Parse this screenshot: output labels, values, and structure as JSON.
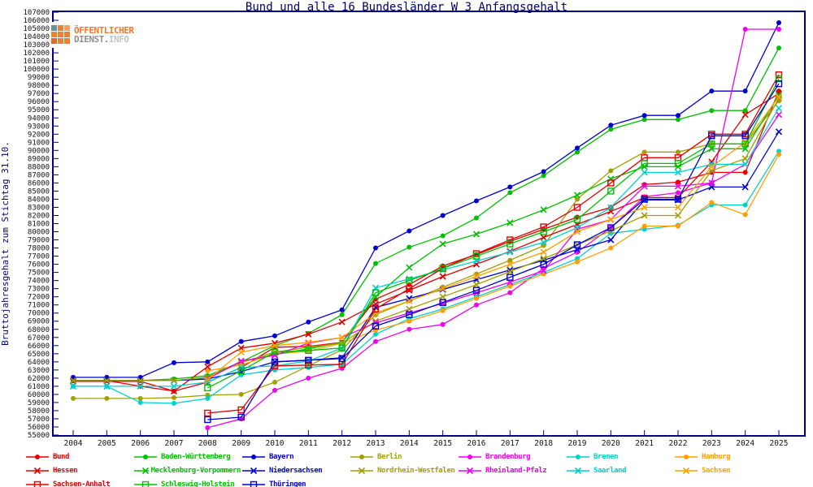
{
  "title": "Bund und alle 16 Bundesländer W 3 Anfangsgehalt",
  "logo": {
    "line1": "ÖFFENTLICHER",
    "line2_dark": "DIENST.",
    "line2_light": "INFO"
  },
  "chart_data": {
    "type": "line",
    "title": "Bund und alle 16 Bundesländer W 3 Anfangsgehalt",
    "ylabel": "Bruttojahresgehalt zum Stichtag 31.10.",
    "xlabel": "",
    "x": [
      2004,
      2005,
      2006,
      2007,
      2008,
      2009,
      2010,
      2011,
      2012,
      2013,
      2014,
      2015,
      2016,
      2017,
      2018,
      2019,
      2020,
      2021,
      2022,
      2023,
      2024,
      2025
    ],
    "ylim": [
      55000,
      107000
    ],
    "ytick_step": 1000,
    "grid": false,
    "legend_position": "bottom",
    "frame_color": "#000080",
    "series": [
      {
        "name": "Bund",
        "color": "#e00000",
        "marker": "dot",
        "values": [
          61700,
          61700,
          61000,
          60400,
          61500,
          63300,
          65800,
          65900,
          66400,
          71700,
          73500,
          75800,
          77200,
          78800,
          80300,
          81800,
          83000,
          85800,
          86100,
          87300,
          87300,
          97300
        ]
      },
      {
        "name": "Baden-Württemberg",
        "color": "#00c000",
        "marker": "dot",
        "values": [
          61700,
          61700,
          61700,
          61900,
          62300,
          64000,
          66000,
          67500,
          69800,
          76100,
          78100,
          79500,
          81700,
          84800,
          86900,
          89800,
          92600,
          93800,
          93800,
          94900,
          94900,
          102600
        ]
      },
      {
        "name": "Bayern",
        "color": "#0000d0",
        "marker": "dot",
        "values": [
          62100,
          62100,
          62100,
          63900,
          64000,
          66500,
          67200,
          68900,
          70400,
          78000,
          80100,
          82000,
          83800,
          85500,
          87400,
          90300,
          93100,
          94300,
          94300,
          97300,
          97300,
          105700
        ]
      },
      {
        "name": "Berlin",
        "color": "#a0a000",
        "marker": "dot",
        "values": [
          59500,
          59500,
          59500,
          59600,
          59900,
          60000,
          61500,
          63500,
          65500,
          69800,
          71500,
          73200,
          74800,
          76500,
          78300,
          84000,
          87500,
          89800,
          89800,
          90800,
          90800,
          96100
        ]
      },
      {
        "name": "Brandenburg",
        "color": "#f000f0",
        "marker": "dot",
        "values": [
          null,
          null,
          null,
          null,
          55900,
          57000,
          60500,
          62000,
          63200,
          66500,
          68000,
          68600,
          71000,
          72500,
          75500,
          77500,
          80500,
          84300,
          84800,
          86000,
          104900,
          104900
        ]
      },
      {
        "name": "Bremen",
        "color": "#00d0d0",
        "marker": "dot",
        "values": [
          61000,
          61000,
          59000,
          58900,
          59500,
          62400,
          63000,
          63300,
          63700,
          67400,
          69300,
          70500,
          72000,
          73500,
          75000,
          76700,
          79800,
          80300,
          80800,
          83300,
          83300,
          89900
        ]
      },
      {
        "name": "Hamburg",
        "color": "#ffa000",
        "marker": "dot",
        "values": [
          null,
          null,
          null,
          null,
          62900,
          63600,
          65000,
          65300,
          66300,
          67900,
          69000,
          70300,
          71800,
          73300,
          74800,
          76300,
          78000,
          80700,
          80700,
          83600,
          82100,
          89500
        ]
      },
      {
        "name": "Hessen",
        "color": "#e00000",
        "marker": "x",
        "values": [
          61600,
          61600,
          61600,
          60400,
          63400,
          65700,
          66300,
          67400,
          68900,
          71100,
          72800,
          74500,
          76000,
          77600,
          79300,
          80900,
          82500,
          84200,
          84200,
          88600,
          94400,
          97000
        ]
      },
      {
        "name": "Mecklenburg-Vorpommern",
        "color": "#00c000",
        "marker": "x",
        "values": [
          61700,
          61700,
          61700,
          61700,
          62100,
          64000,
          64900,
          65600,
          66400,
          72000,
          75600,
          78500,
          79700,
          81100,
          82700,
          84500,
          86500,
          88000,
          88000,
          90200,
          90200,
          96800
        ]
      },
      {
        "name": "Niedersachsen",
        "color": "#0000d0",
        "marker": "x",
        "values": [
          61700,
          61700,
          61700,
          61700,
          61900,
          62800,
          64000,
          64200,
          64500,
          70700,
          71800,
          72900,
          74100,
          75300,
          76500,
          77800,
          79000,
          83900,
          83900,
          85500,
          85500,
          92300
        ]
      },
      {
        "name": "Nordrhein-Westfalen",
        "color": "#a0a000",
        "marker": "x",
        "values": [
          61700,
          61700,
          61700,
          61700,
          62100,
          63900,
          65200,
          65800,
          66300,
          69000,
          70500,
          72000,
          73500,
          75100,
          76700,
          78400,
          80100,
          82000,
          82000,
          87500,
          89000,
          96400
        ]
      },
      {
        "name": "Rheinland-Pfalz",
        "color": "#f000f0",
        "marker": "x",
        "values": [
          null,
          null,
          null,
          null,
          61900,
          64100,
          64800,
          66300,
          67000,
          68800,
          70000,
          71200,
          72500,
          73800,
          75200,
          80300,
          81500,
          85600,
          85600,
          86000,
          88300,
          94400
        ]
      },
      {
        "name": "Saarland",
        "color": "#00d0d0",
        "marker": "x",
        "values": [
          61000,
          61000,
          61000,
          61000,
          61500,
          63300,
          63500,
          64100,
          65700,
          73100,
          74200,
          75300,
          76400,
          77500,
          78700,
          80500,
          83000,
          87300,
          87300,
          88300,
          88300,
          95200
        ]
      },
      {
        "name": "Sachsen",
        "color": "#ffa000",
        "marker": "x",
        "values": [
          null,
          null,
          null,
          null,
          61800,
          65200,
          66000,
          66400,
          67000,
          70000,
          71500,
          73000,
          74500,
          76000,
          77500,
          80000,
          81500,
          83000,
          83000,
          88000,
          91000,
          96600
        ]
      },
      {
        "name": "Sachsen-Anhalt",
        "color": "#e00000",
        "marker": "square",
        "values": [
          null,
          null,
          null,
          null,
          57700,
          58100,
          63500,
          63600,
          63700,
          70500,
          73000,
          75500,
          77300,
          79000,
          80600,
          83000,
          86000,
          89100,
          89100,
          92000,
          92000,
          99300
        ]
      },
      {
        "name": "Schleswig-Holstein",
        "color": "#00c000",
        "marker": "square",
        "values": [
          null,
          null,
          null,
          null,
          60800,
          62900,
          65200,
          65400,
          65700,
          72500,
          74000,
          75500,
          77000,
          78500,
          80000,
          81500,
          85000,
          88400,
          88400,
          90800,
          90800,
          98800
        ]
      },
      {
        "name": "Thüringen",
        "color": "#0000d0",
        "marker": "square",
        "values": [
          null,
          null,
          null,
          null,
          56900,
          57200,
          64000,
          64200,
          64400,
          68400,
          69800,
          71300,
          72800,
          74400,
          76000,
          78400,
          80500,
          84000,
          84000,
          91800,
          91800,
          98200
        ]
      }
    ]
  }
}
